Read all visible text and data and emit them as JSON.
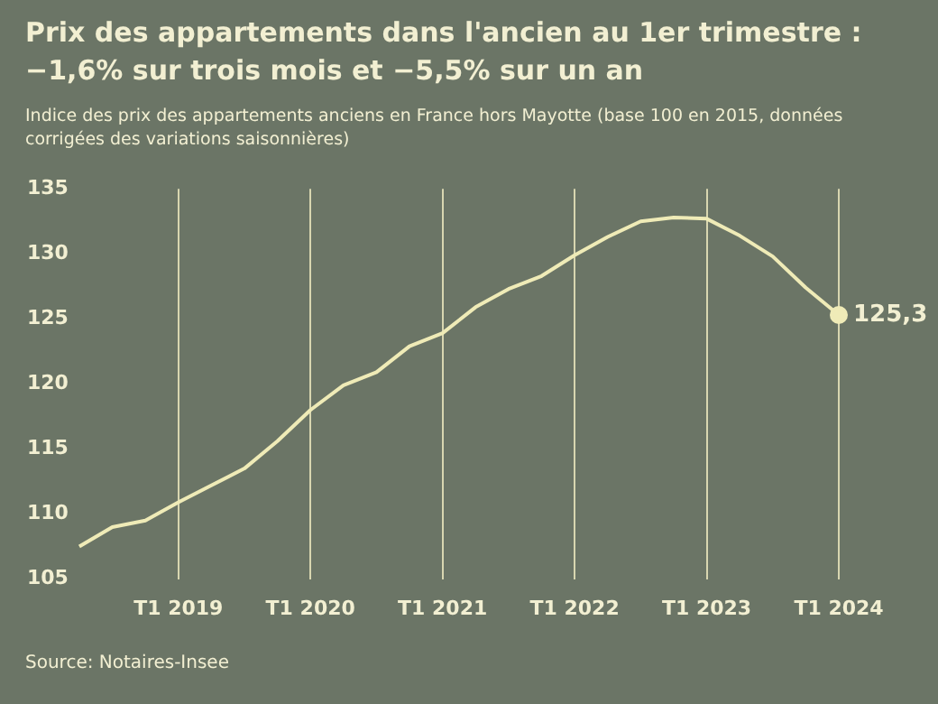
{
  "chart_data": {
    "type": "line",
    "title": "Prix des appartements dans l'ancien au 1er trimestre : −1,6% sur trois mois et −5,5% sur un an",
    "subtitle": "Indice des prix des appartements anciens en France hors Mayotte (base 100 en 2015, données corrigées des variations saisonnières)",
    "categories": [
      null,
      null,
      null,
      "T1 2019",
      null,
      null,
      null,
      "T1 2020",
      null,
      null,
      null,
      "T1 2021",
      null,
      null,
      null,
      "T1 2022",
      null,
      null,
      null,
      "T1 2023",
      null,
      null,
      null,
      "T1 2024"
    ],
    "series": [
      {
        "color": "#efebb7",
        "values": [
          107.5,
          109.0,
          109.5,
          110.9,
          112.2,
          113.5,
          115.6,
          118.0,
          119.9,
          120.9,
          122.9,
          123.9,
          125.9,
          127.3,
          128.3,
          129.9,
          131.3,
          132.5,
          132.8,
          132.7,
          131.4,
          129.8,
          127.4,
          125.3
        ],
        "value_labels": [
          null,
          null,
          null,
          null,
          null,
          null,
          null,
          null,
          null,
          null,
          null,
          null,
          null,
          null,
          null,
          null,
          null,
          null,
          null,
          null,
          null,
          null,
          null,
          "125,3"
        ]
      }
    ],
    "ylim": [
      105,
      135
    ],
    "yticks": [
      105,
      110,
      115,
      120,
      125,
      130,
      135
    ],
    "grid": "x",
    "legend": false,
    "annotations": [
      "Source: Notaires-Insee"
    ]
  }
}
